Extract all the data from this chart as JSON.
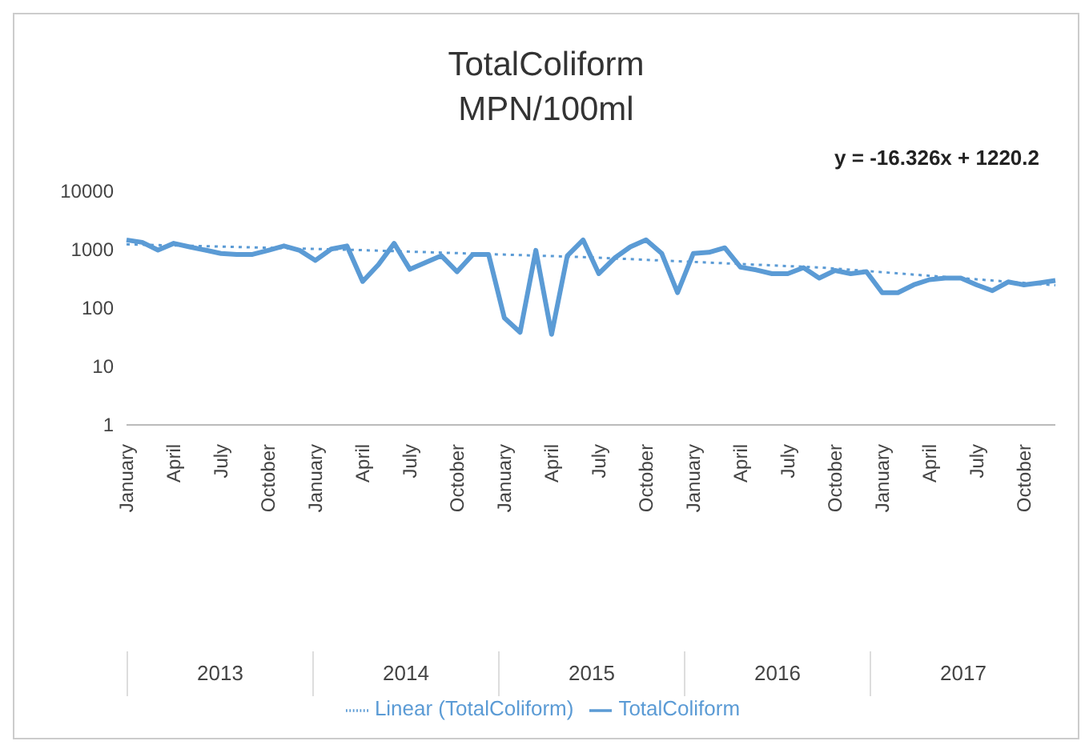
{
  "chart_data": {
    "type": "line",
    "title": "TotalColiform",
    "subtitle": "MPN/100ml",
    "categories": [
      "January",
      null,
      null,
      "April",
      null,
      null,
      "July",
      null,
      null,
      "October",
      null,
      null,
      "January",
      null,
      null,
      "April",
      null,
      null,
      "July",
      null,
      null,
      "October",
      null,
      null,
      "January",
      null,
      null,
      "April",
      null,
      null,
      "July",
      null,
      null,
      "October",
      null,
      null,
      "January",
      null,
      null,
      "April",
      null,
      null,
      "July",
      null,
      null,
      "October",
      null,
      null,
      "January",
      null,
      null,
      "April",
      null,
      null,
      "July",
      null,
      null,
      "October",
      null,
      null
    ],
    "annotations": [
      "y = -16.326x + 1220.2",
      "2013",
      "2014",
      "2015",
      "2016",
      "2017"
    ],
    "series": [
      {
        "name": "TotalColiform",
        "color": "#5b9bd5",
        "line_style": "solid",
        "values": [
          1430,
          1300,
          960,
          1250,
          1090,
          960,
          840,
          810,
          810,
          950,
          1130,
          950,
          640,
          1000,
          1130,
          280,
          540,
          1250,
          450,
          590,
          770,
          410,
          810,
          810,
          67,
          38,
          950,
          35,
          770,
          1430,
          380,
          700,
          1090,
          1430,
          840,
          180,
          840,
          880,
          1050,
          490,
          440,
          380,
          380,
          480,
          320,
          430,
          380,
          410,
          180,
          180,
          245,
          300,
          320,
          320,
          245,
          195,
          275,
          245,
          265,
          290
        ]
      },
      {
        "name": "Linear (TotalColiform)",
        "color": "#5b9bd5",
        "line_style": "dotted",
        "values": [
          1204,
          null,
          null,
          null,
          null,
          null,
          null,
          null,
          null,
          null,
          null,
          null,
          null,
          null,
          975,
          null,
          null,
          null,
          null,
          null,
          null,
          null,
          null,
          null,
          null,
          null,
          null,
          null,
          null,
          730,
          null,
          null,
          null,
          null,
          null,
          null,
          null,
          null,
          null,
          null,
          null,
          null,
          null,
          null,
          485,
          null,
          null,
          null,
          null,
          null,
          null,
          null,
          null,
          null,
          null,
          null,
          null,
          null,
          null,
          241
        ]
      }
    ],
    "log": "y",
    "ylim": [
      1,
      10000
    ],
    "yticks": [
      1,
      10,
      100,
      1000,
      10000
    ],
    "grid": false,
    "legend": "bottom",
    "marker": "none"
  }
}
